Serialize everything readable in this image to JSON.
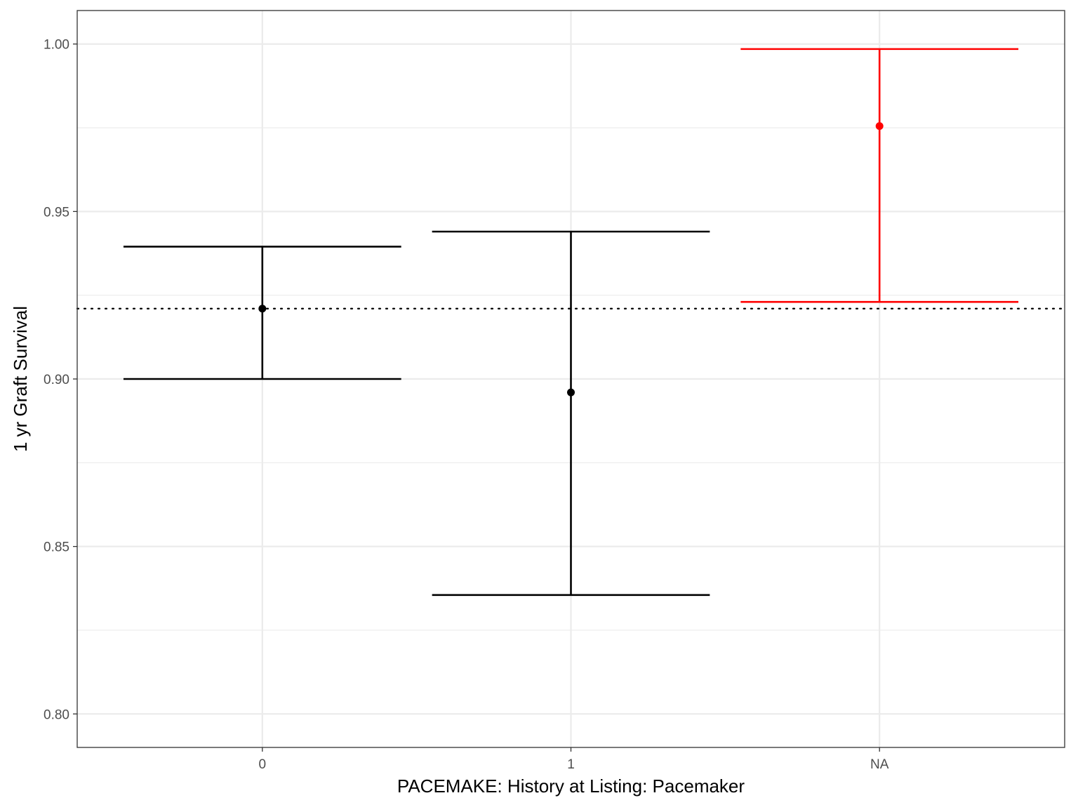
{
  "chart_data": {
    "type": "errorbar",
    "title": "",
    "xlabel": "PACEMAKE: History at Listing: Pacemaker",
    "ylabel": "1 yr Graft Survival",
    "categories": [
      "0",
      "1",
      "NA"
    ],
    "estimates": [
      0.921,
      0.896,
      0.9755
    ],
    "lower": [
      0.9,
      0.8355,
      0.923
    ],
    "upper": [
      0.9395,
      0.944,
      0.9985
    ],
    "colors": [
      "#000000",
      "#000000",
      "#ff0000"
    ],
    "reference_line": 0.921,
    "ylim": [
      0.79,
      1.01
    ],
    "y_ticks": [
      0.8,
      0.85,
      0.9,
      0.95,
      1.0
    ],
    "y_tick_labels": [
      "0.80",
      "0.85",
      "0.90",
      "0.95",
      "1.00"
    ],
    "grid": true,
    "legend": "none"
  }
}
